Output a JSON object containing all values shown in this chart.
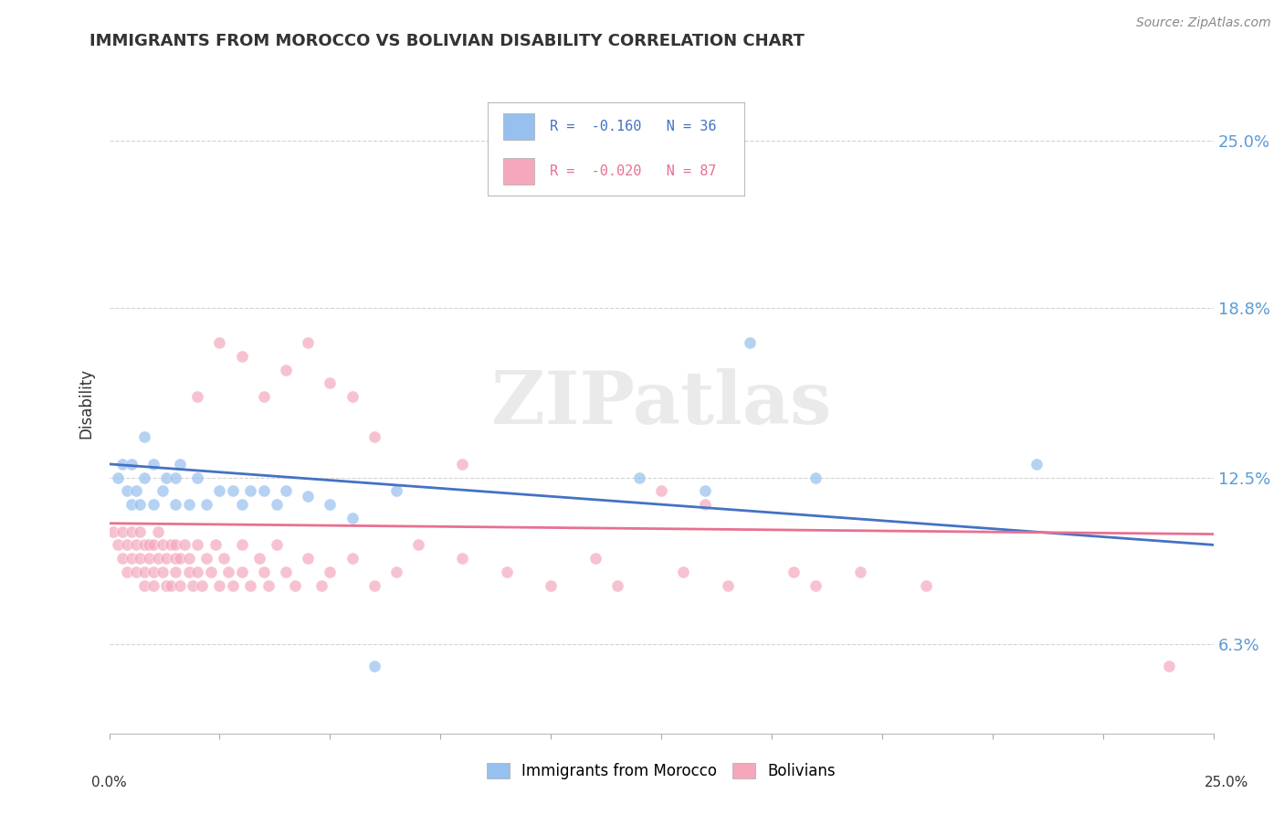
{
  "title": "IMMIGRANTS FROM MOROCCO VS BOLIVIAN DISABILITY CORRELATION CHART",
  "source": "Source: ZipAtlas.com",
  "ylabel": "Disability",
  "ytick_labels": [
    "6.3%",
    "12.5%",
    "18.8%",
    "25.0%"
  ],
  "ytick_values": [
    0.063,
    0.125,
    0.188,
    0.25
  ],
  "xmin": 0.0,
  "xmax": 0.25,
  "ymin": 0.03,
  "ymax": 0.275,
  "legend_blue_r": "R =  -0.160",
  "legend_blue_n": "N = 36",
  "legend_pink_r": "R =  -0.020",
  "legend_pink_n": "N = 87",
  "blue_color": "#96C0EE",
  "pink_color": "#F5A8BC",
  "blue_line_color": "#4472C4",
  "pink_line_color": "#E87090",
  "watermark": "ZIPatlas",
  "blue_scatter_x": [
    0.002,
    0.003,
    0.004,
    0.005,
    0.005,
    0.006,
    0.007,
    0.008,
    0.008,
    0.01,
    0.01,
    0.012,
    0.013,
    0.015,
    0.015,
    0.016,
    0.018,
    0.02,
    0.022,
    0.025,
    0.028,
    0.03,
    0.032,
    0.035,
    0.038,
    0.04,
    0.045,
    0.05,
    0.055,
    0.06,
    0.065,
    0.12,
    0.135,
    0.145,
    0.16,
    0.21
  ],
  "blue_scatter_y": [
    0.125,
    0.13,
    0.12,
    0.115,
    0.13,
    0.12,
    0.115,
    0.125,
    0.14,
    0.115,
    0.13,
    0.12,
    0.125,
    0.115,
    0.125,
    0.13,
    0.115,
    0.125,
    0.115,
    0.12,
    0.12,
    0.115,
    0.12,
    0.12,
    0.115,
    0.12,
    0.118,
    0.115,
    0.11,
    0.055,
    0.12,
    0.125,
    0.12,
    0.175,
    0.125,
    0.13
  ],
  "pink_scatter_x": [
    0.001,
    0.002,
    0.003,
    0.003,
    0.004,
    0.004,
    0.005,
    0.005,
    0.006,
    0.006,
    0.007,
    0.007,
    0.008,
    0.008,
    0.008,
    0.009,
    0.009,
    0.01,
    0.01,
    0.01,
    0.011,
    0.011,
    0.012,
    0.012,
    0.013,
    0.013,
    0.014,
    0.014,
    0.015,
    0.015,
    0.015,
    0.016,
    0.016,
    0.017,
    0.018,
    0.018,
    0.019,
    0.02,
    0.02,
    0.021,
    0.022,
    0.023,
    0.024,
    0.025,
    0.026,
    0.027,
    0.028,
    0.03,
    0.03,
    0.032,
    0.034,
    0.035,
    0.036,
    0.038,
    0.04,
    0.042,
    0.045,
    0.048,
    0.05,
    0.055,
    0.06,
    0.065,
    0.07,
    0.08,
    0.09,
    0.1,
    0.11,
    0.115,
    0.13,
    0.14,
    0.155,
    0.16,
    0.17,
    0.185,
    0.02,
    0.035,
    0.04,
    0.025,
    0.03,
    0.045,
    0.05,
    0.055,
    0.06,
    0.08,
    0.125,
    0.135,
    0.24
  ],
  "pink_scatter_y": [
    0.105,
    0.1,
    0.095,
    0.105,
    0.09,
    0.1,
    0.095,
    0.105,
    0.09,
    0.1,
    0.095,
    0.105,
    0.09,
    0.1,
    0.085,
    0.095,
    0.1,
    0.09,
    0.1,
    0.085,
    0.095,
    0.105,
    0.09,
    0.1,
    0.085,
    0.095,
    0.1,
    0.085,
    0.09,
    0.095,
    0.1,
    0.085,
    0.095,
    0.1,
    0.09,
    0.095,
    0.085,
    0.09,
    0.1,
    0.085,
    0.095,
    0.09,
    0.1,
    0.085,
    0.095,
    0.09,
    0.085,
    0.09,
    0.1,
    0.085,
    0.095,
    0.09,
    0.085,
    0.1,
    0.09,
    0.085,
    0.095,
    0.085,
    0.09,
    0.095,
    0.085,
    0.09,
    0.1,
    0.095,
    0.09,
    0.085,
    0.095,
    0.085,
    0.09,
    0.085,
    0.09,
    0.085,
    0.09,
    0.085,
    0.155,
    0.155,
    0.165,
    0.175,
    0.17,
    0.175,
    0.16,
    0.155,
    0.14,
    0.13,
    0.12,
    0.115,
    0.055
  ]
}
